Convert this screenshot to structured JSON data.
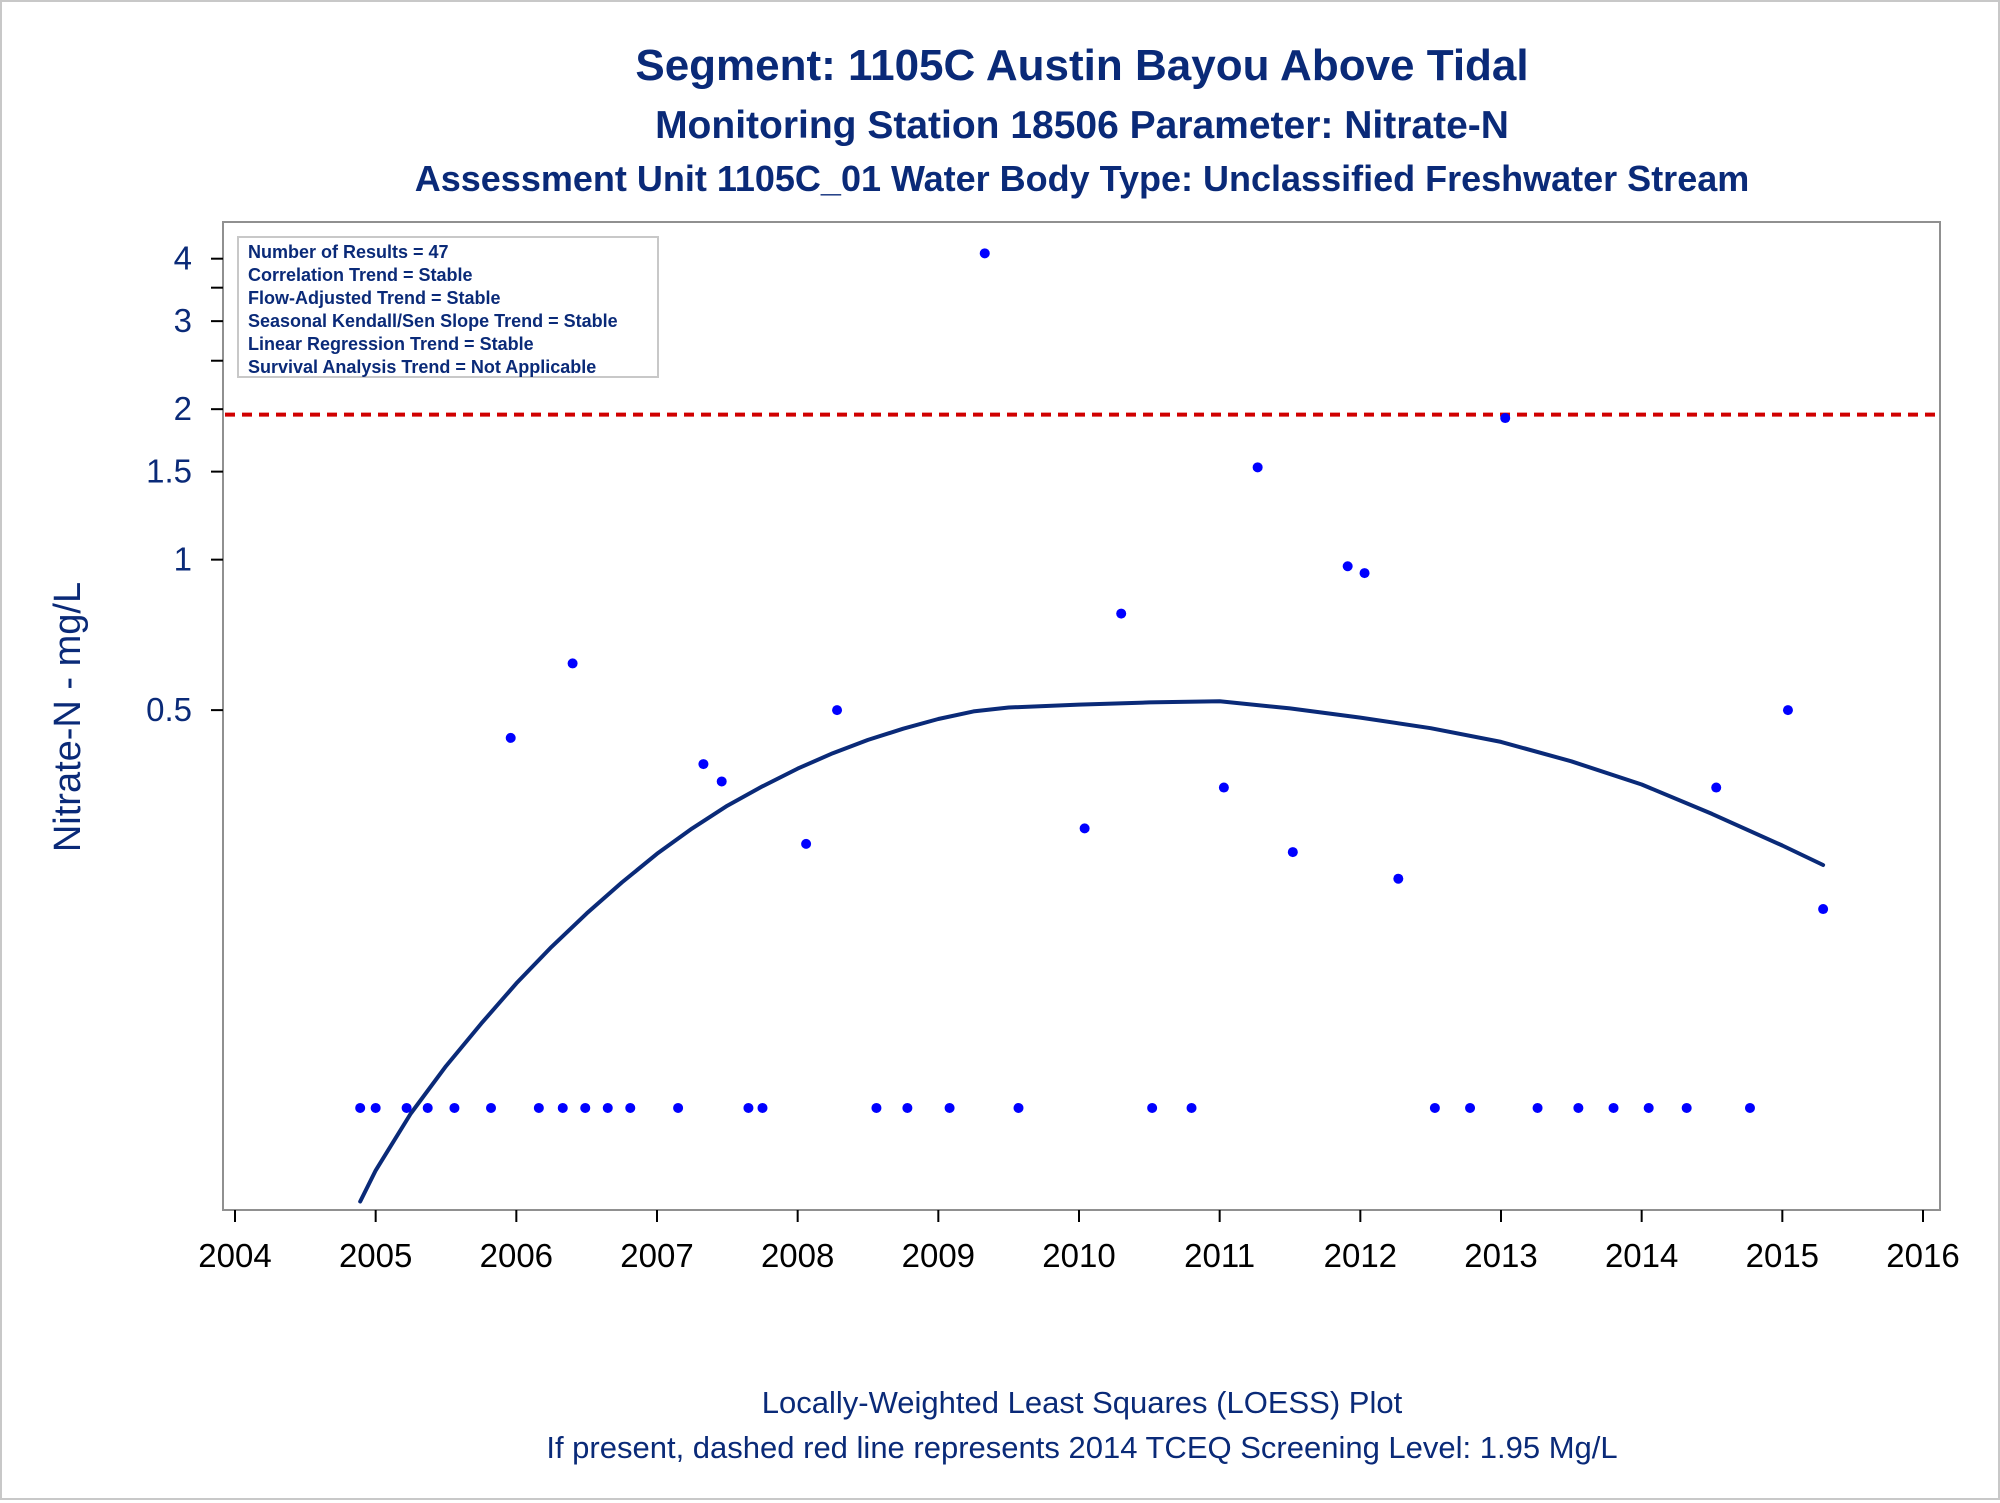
{
  "titles": {
    "line1": "Segment: 1105C  Austin Bayou Above Tidal",
    "line2": "Monitoring Station 18506 Parameter: Nitrate-N",
    "line3": "Assessment Unit 1105C_01   Water Body Type: Unclassified Freshwater Stream"
  },
  "stats": [
    "Number of Results = 47",
    "Correlation Trend = Stable",
    "Flow-Adjusted Trend = Stable",
    "Seasonal Kendall/Sen Slope Trend = Stable",
    "Linear Regression Trend = Stable",
    "Survival Analysis Trend = Not Applicable"
  ],
  "footer": {
    "line1": "Locally-Weighted Least Squares (LOESS) Plot",
    "line2": "If present, dashed red line represents 2014 TCEQ Screening Level: 1.95 Mg/L"
  },
  "colors": {
    "points": "#0000ff",
    "loess": "#0a2a78",
    "screening": "#d00000",
    "text": "#0a2a78"
  },
  "chart_data": {
    "type": "scatter",
    "ylabel": "Nitrate-N - mg/L",
    "xlabel": "",
    "xlim": [
      2004,
      2016
    ],
    "x_ticks": [
      2004,
      2005,
      2006,
      2007,
      2008,
      2009,
      2010,
      2011,
      2012,
      2013,
      2014,
      2015,
      2016
    ],
    "x_tick_labels": [
      "2004",
      "2005",
      "2006",
      "2007",
      "2008",
      "2009",
      "2010",
      "2011",
      "2012",
      "2013",
      "2014",
      "2015",
      "2016"
    ],
    "y_scale": "log",
    "ylim": [
      0.05,
      4.4
    ],
    "y_ticks": [
      0.5,
      1,
      1.5,
      2,
      3,
      4
    ],
    "y_tick_labels": [
      "0.5",
      "1",
      "1.5",
      "2",
      "3",
      "4"
    ],
    "y_minor_ticks": [
      2.5,
      3.5
    ],
    "screening_level": 1.95,
    "grid": false,
    "series": [
      {
        "type": "scatter",
        "points": [
          [
            2004.89,
            0.08
          ],
          [
            2005.0,
            0.08
          ],
          [
            2005.22,
            0.08
          ],
          [
            2005.37,
            0.08
          ],
          [
            2005.56,
            0.08
          ],
          [
            2005.82,
            0.08
          ],
          [
            2005.96,
            0.44
          ],
          [
            2006.16,
            0.08
          ],
          [
            2006.33,
            0.08
          ],
          [
            2006.4,
            0.62
          ],
          [
            2006.49,
            0.08
          ],
          [
            2006.65,
            0.08
          ],
          [
            2006.81,
            0.08
          ],
          [
            2007.15,
            0.08
          ],
          [
            2007.33,
            0.39
          ],
          [
            2007.46,
            0.36
          ],
          [
            2007.65,
            0.08
          ],
          [
            2007.75,
            0.08
          ],
          [
            2008.06,
            0.27
          ],
          [
            2008.28,
            0.5
          ],
          [
            2008.56,
            0.08
          ],
          [
            2008.78,
            0.08
          ],
          [
            2009.08,
            0.08
          ],
          [
            2009.33,
            4.1
          ],
          [
            2009.57,
            0.08
          ],
          [
            2010.04,
            0.29
          ],
          [
            2010.3,
            0.78
          ],
          [
            2010.52,
            0.08
          ],
          [
            2010.8,
            0.08
          ],
          [
            2011.03,
            0.35
          ],
          [
            2011.27,
            1.53
          ],
          [
            2011.52,
            0.26
          ],
          [
            2011.91,
            0.97
          ],
          [
            2012.03,
            0.94
          ],
          [
            2012.27,
            0.23
          ],
          [
            2012.53,
            0.08
          ],
          [
            2012.78,
            0.08
          ],
          [
            2013.03,
            1.92
          ],
          [
            2013.26,
            0.08
          ],
          [
            2013.55,
            0.08
          ],
          [
            2013.8,
            0.08
          ],
          [
            2014.05,
            0.08
          ],
          [
            2014.32,
            0.08
          ],
          [
            2014.53,
            0.35
          ],
          [
            2014.77,
            0.08
          ],
          [
            2015.04,
            0.5
          ],
          [
            2015.29,
            0.2
          ]
        ]
      },
      {
        "type": "line",
        "points": [
          [
            2004.89,
            0.052
          ],
          [
            2005.0,
            0.06
          ],
          [
            2005.25,
            0.078
          ],
          [
            2005.5,
            0.097
          ],
          [
            2005.75,
            0.118
          ],
          [
            2006.0,
            0.142
          ],
          [
            2006.25,
            0.168
          ],
          [
            2006.5,
            0.196
          ],
          [
            2006.75,
            0.226
          ],
          [
            2007.0,
            0.258
          ],
          [
            2007.25,
            0.29
          ],
          [
            2007.5,
            0.322
          ],
          [
            2007.75,
            0.352
          ],
          [
            2008.0,
            0.382
          ],
          [
            2008.25,
            0.41
          ],
          [
            2008.5,
            0.436
          ],
          [
            2008.75,
            0.459
          ],
          [
            2009.0,
            0.48
          ],
          [
            2009.25,
            0.497
          ],
          [
            2009.5,
            0.506
          ],
          [
            2010.0,
            0.513
          ],
          [
            2010.5,
            0.518
          ],
          [
            2011.0,
            0.521
          ],
          [
            2011.5,
            0.504
          ],
          [
            2012.0,
            0.483
          ],
          [
            2012.5,
            0.46
          ],
          [
            2013.0,
            0.432
          ],
          [
            2013.5,
            0.395
          ],
          [
            2014.0,
            0.355
          ],
          [
            2014.5,
            0.31
          ],
          [
            2015.0,
            0.268
          ],
          [
            2015.29,
            0.245
          ]
        ]
      }
    ]
  }
}
